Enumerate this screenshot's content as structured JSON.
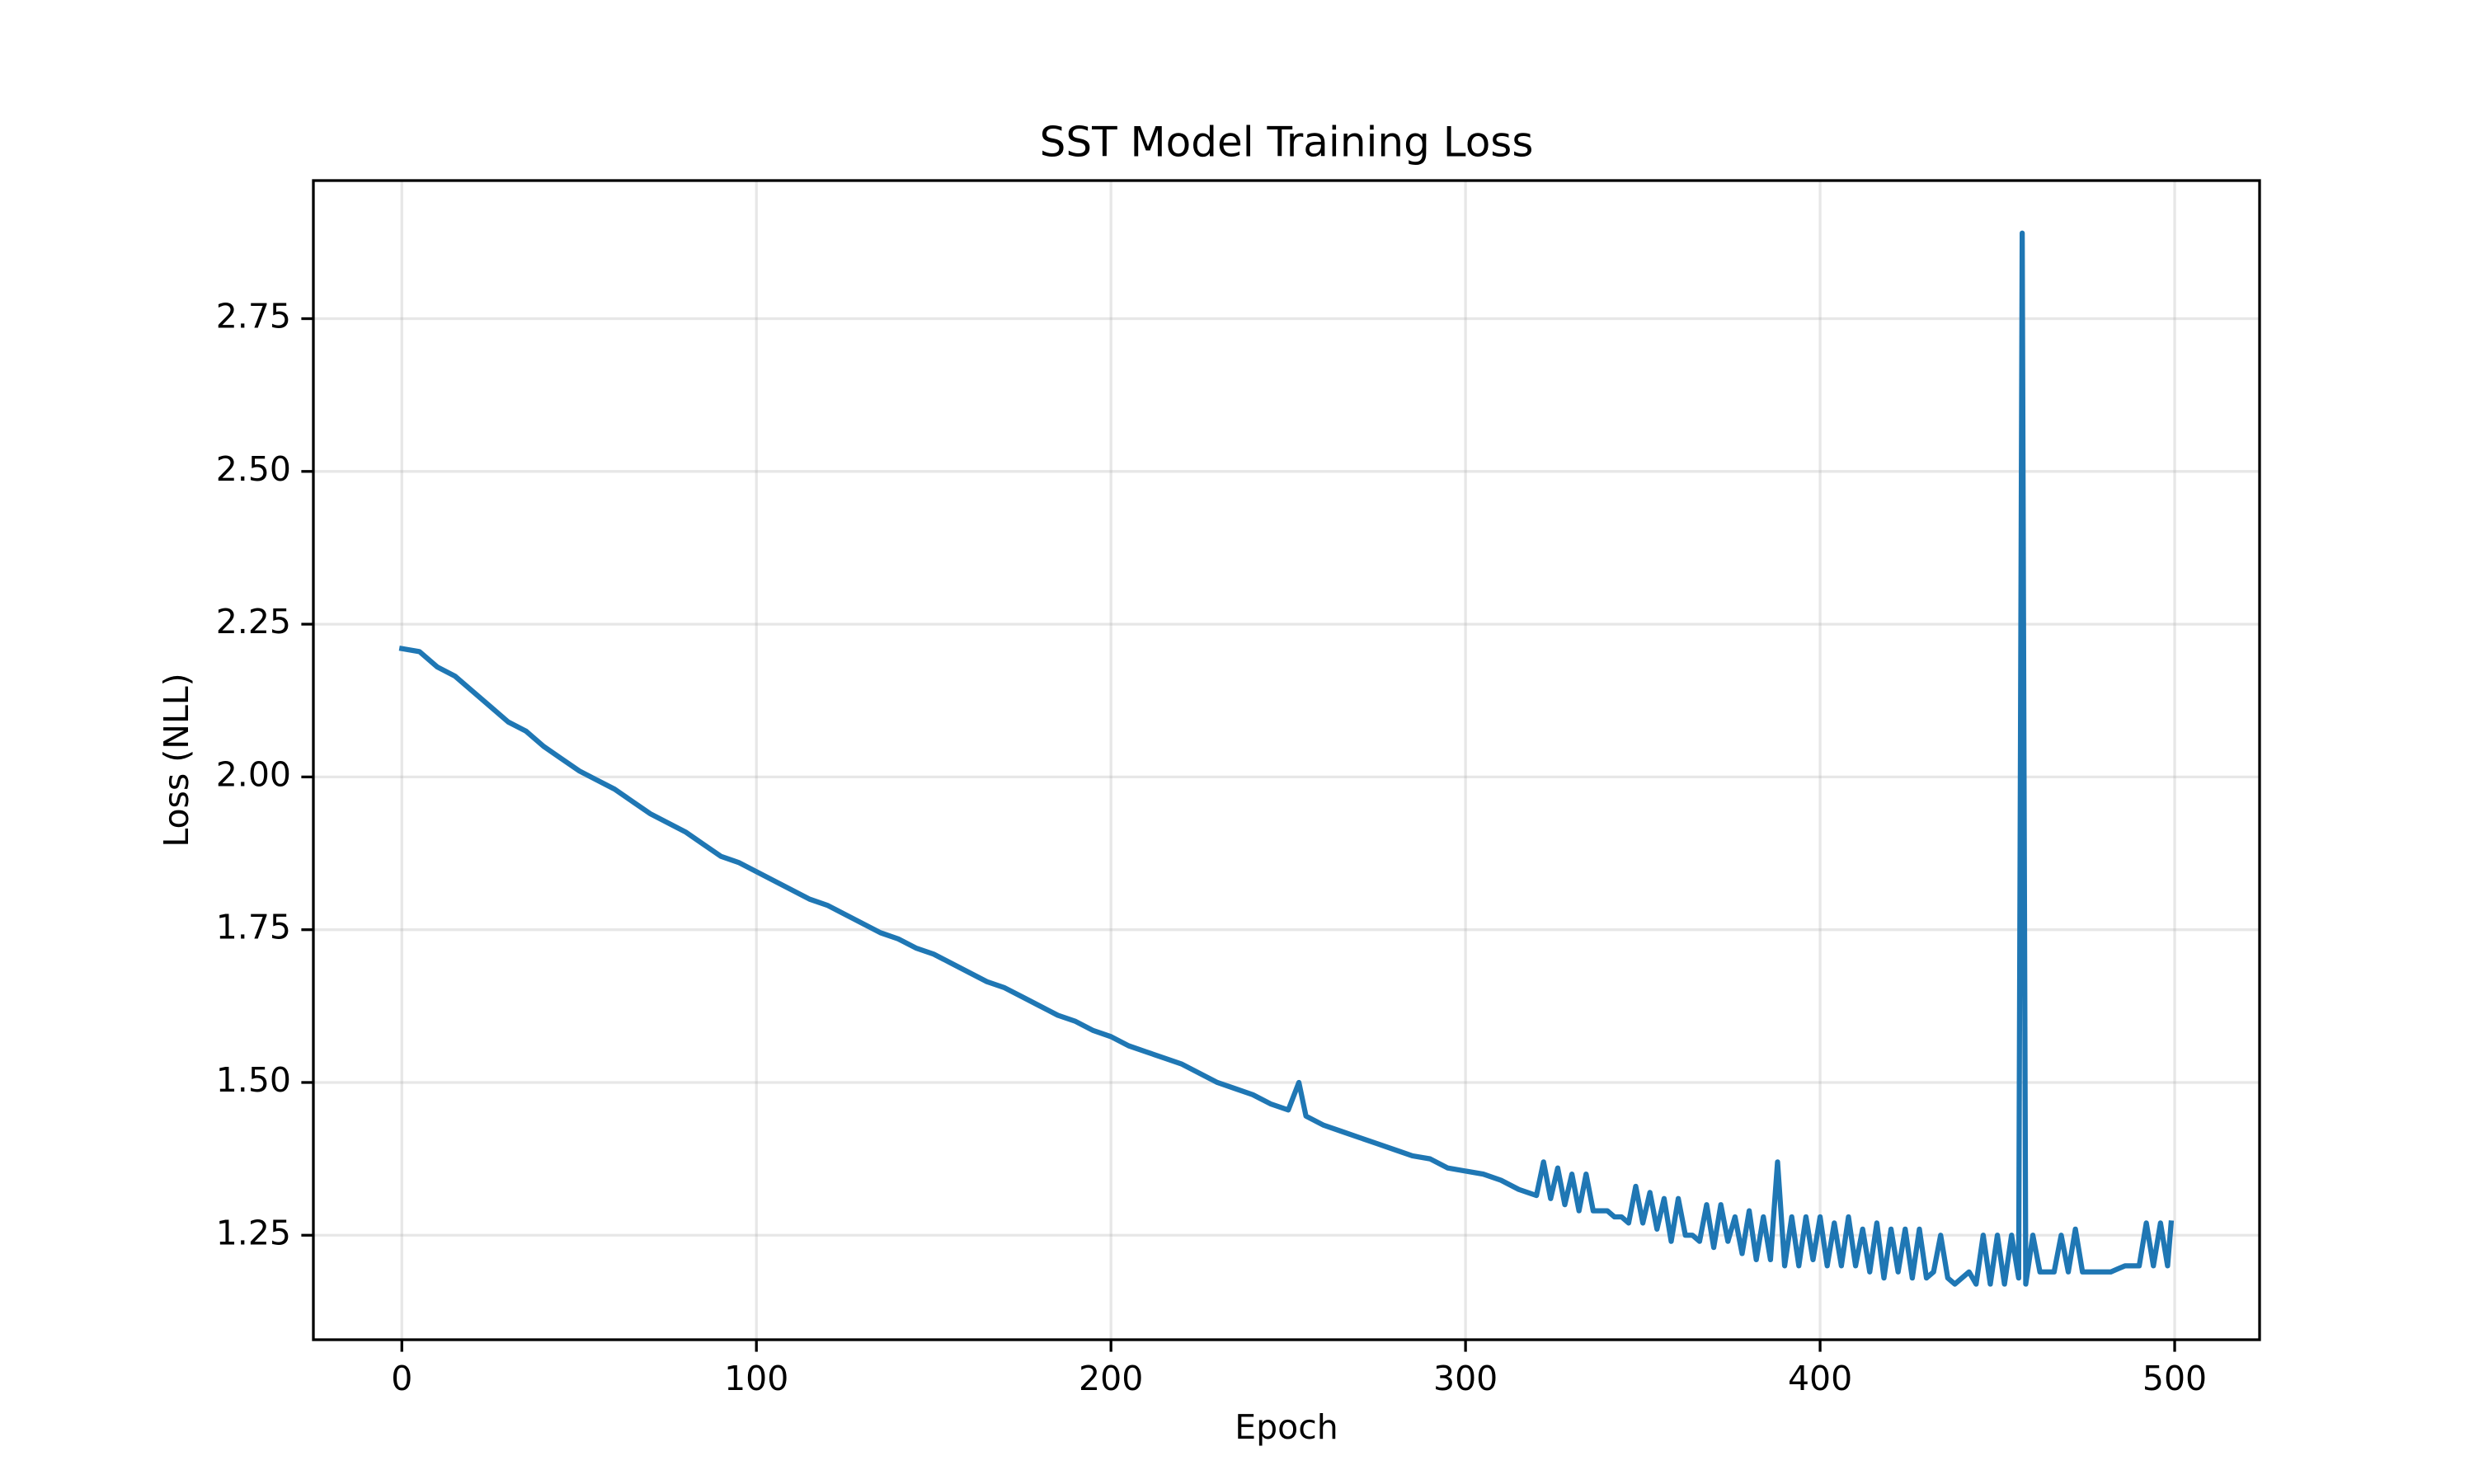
{
  "chart_data": {
    "type": "line",
    "title": "SST Model Training Loss",
    "x_label": "Epoch",
    "y_label": "Loss (NLL)",
    "grid": true,
    "xlim": [
      -24.95,
      523.95
    ],
    "xticks": [
      0,
      100,
      200,
      300,
      400,
      500
    ],
    "ylim": [
      1.079,
      2.976
    ],
    "yticks": [
      1.25,
      {
        "value": 1.5,
        "label": "1.50"
      },
      1.75,
      {
        "value": 2,
        "label": "2.00"
      },
      2.25,
      {
        "value": 2.5,
        "label": "2.50"
      },
      2.75
    ],
    "x": [
      0,
      5,
      10,
      15,
      20,
      25,
      30,
      35,
      40,
      45,
      50,
      55,
      60,
      65,
      70,
      75,
      80,
      85,
      90,
      95,
      100,
      105,
      110,
      115,
      120,
      125,
      130,
      135,
      140,
      145,
      150,
      155,
      160,
      165,
      170,
      175,
      180,
      185,
      190,
      195,
      200,
      205,
      210,
      215,
      220,
      225,
      230,
      235,
      240,
      245,
      250,
      253,
      255,
      260,
      265,
      270,
      275,
      280,
      285,
      290,
      295,
      300,
      305,
      310,
      315,
      320,
      322,
      324,
      326,
      328,
      330,
      332,
      334,
      336,
      338,
      340,
      342,
      344,
      346,
      348,
      350,
      352,
      354,
      356,
      358,
      360,
      362,
      364,
      366,
      368,
      370,
      372,
      374,
      376,
      378,
      380,
      382,
      384,
      386,
      388,
      390,
      392,
      394,
      396,
      398,
      400,
      402,
      404,
      406,
      408,
      410,
      412,
      414,
      416,
      418,
      420,
      422,
      424,
      426,
      428,
      430,
      432,
      434,
      436,
      438,
      440,
      442,
      444,
      446,
      448,
      450,
      452,
      454,
      456,
      457,
      458,
      460,
      462,
      464,
      466,
      468,
      470,
      472,
      474,
      476,
      478,
      480,
      482,
      484,
      486,
      488,
      490,
      492,
      494,
      496,
      498,
      499
    ],
    "series": [
      {
        "name": "Loss",
        "color": "#1f77b4",
        "values": [
          2.21,
          2.205,
          2.18,
          2.165,
          2.14,
          2.115,
          2.09,
          2.075,
          2.05,
          2.03,
          2.01,
          1.995,
          1.98,
          1.96,
          1.94,
          1.925,
          1.91,
          1.89,
          1.87,
          1.86,
          1.845,
          1.83,
          1.815,
          1.8,
          1.79,
          1.775,
          1.76,
          1.745,
          1.735,
          1.72,
          1.71,
          1.695,
          1.68,
          1.665,
          1.655,
          1.64,
          1.625,
          1.61,
          1.6,
          1.585,
          1.575,
          1.56,
          1.55,
          1.54,
          1.53,
          1.515,
          1.5,
          1.49,
          1.48,
          1.465,
          1.455,
          1.5,
          1.445,
          1.43,
          1.42,
          1.41,
          1.4,
          1.39,
          1.38,
          1.375,
          1.36,
          1.355,
          1.35,
          1.34,
          1.325,
          1.315,
          1.37,
          1.31,
          1.36,
          1.3,
          1.35,
          1.29,
          1.35,
          1.29,
          1.29,
          1.29,
          1.28,
          1.28,
          1.27,
          1.33,
          1.27,
          1.32,
          1.26,
          1.31,
          1.24,
          1.31,
          1.25,
          1.25,
          1.24,
          1.3,
          1.23,
          1.3,
          1.24,
          1.28,
          1.22,
          1.29,
          1.21,
          1.28,
          1.21,
          1.37,
          1.2,
          1.28,
          1.2,
          1.28,
          1.21,
          1.28,
          1.2,
          1.27,
          1.2,
          1.28,
          1.2,
          1.26,
          1.19,
          1.27,
          1.18,
          1.26,
          1.19,
          1.26,
          1.18,
          1.26,
          1.18,
          1.19,
          1.25,
          1.18,
          1.17,
          1.18,
          1.19,
          1.17,
          1.25,
          1.17,
          1.25,
          1.17,
          1.25,
          1.18,
          2.89,
          1.17,
          1.25,
          1.19,
          1.19,
          1.19,
          1.25,
          1.19,
          1.26,
          1.19,
          1.19,
          1.19,
          1.19,
          1.19,
          1.195,
          1.2,
          1.2,
          1.2,
          1.27,
          1.2,
          1.27,
          1.2,
          1.27
        ]
      }
    ]
  }
}
